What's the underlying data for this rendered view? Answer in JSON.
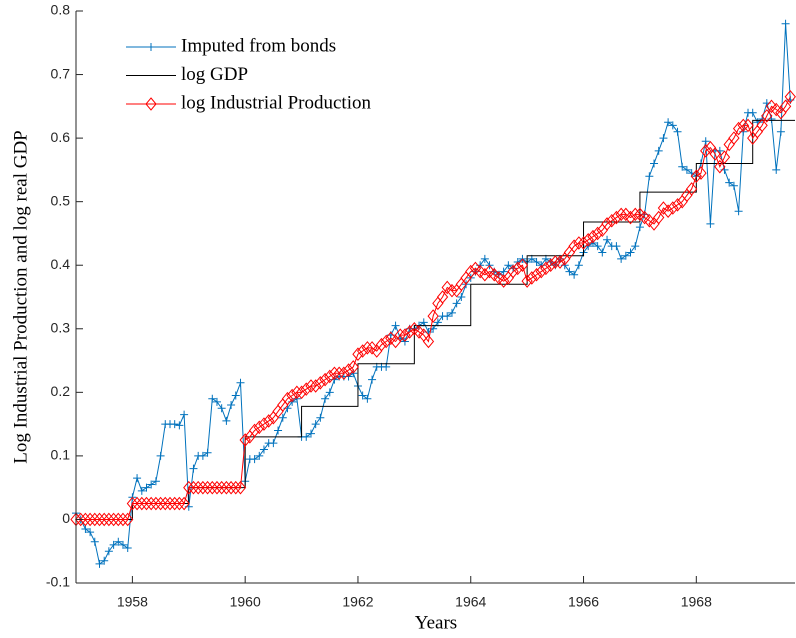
{
  "chart_data": {
    "type": "line",
    "x_label": "Years",
    "y_label": "Log Industrial Production and log real GDP",
    "xlim": [
      1957,
      1969.75
    ],
    "ylim": [
      -0.1,
      0.8
    ],
    "xticks": [
      1958,
      1960,
      1962,
      1964,
      1966,
      1968
    ],
    "yticks": [
      -0.1,
      0,
      0.1,
      0.2,
      0.3,
      0.4,
      0.5,
      0.6,
      0.7,
      0.8
    ],
    "grid": false,
    "legend": "upper left",
    "x": [
      1957,
      1957.083,
      1957.167,
      1957.25,
      1957.333,
      1957.417,
      1957.5,
      1957.583,
      1957.667,
      1957.75,
      1957.833,
      1957.917,
      1958,
      1958.083,
      1958.167,
      1958.25,
      1958.333,
      1958.417,
      1958.5,
      1958.583,
      1958.667,
      1958.75,
      1958.833,
      1958.917,
      1959,
      1959.083,
      1959.167,
      1959.25,
      1959.333,
      1959.417,
      1959.5,
      1959.583,
      1959.667,
      1959.75,
      1959.833,
      1959.917,
      1960,
      1960.083,
      1960.167,
      1960.25,
      1960.333,
      1960.417,
      1960.5,
      1960.583,
      1960.667,
      1960.75,
      1960.833,
      1960.917,
      1961,
      1961.083,
      1961.167,
      1961.25,
      1961.333,
      1961.417,
      1961.5,
      1961.583,
      1961.667,
      1961.75,
      1961.833,
      1961.917,
      1962,
      1962.083,
      1962.167,
      1962.25,
      1962.333,
      1962.417,
      1962.5,
      1962.583,
      1962.667,
      1962.75,
      1962.833,
      1962.917,
      1963,
      1963.083,
      1963.167,
      1963.25,
      1963.333,
      1963.417,
      1963.5,
      1963.583,
      1963.667,
      1963.75,
      1963.833,
      1963.917,
      1964,
      1964.083,
      1964.167,
      1964.25,
      1964.333,
      1964.417,
      1964.5,
      1964.583,
      1964.667,
      1964.75,
      1964.833,
      1964.917,
      1965,
      1965.083,
      1965.167,
      1965.25,
      1965.333,
      1965.417,
      1965.5,
      1965.583,
      1965.667,
      1965.75,
      1965.833,
      1965.917,
      1966,
      1966.083,
      1966.167,
      1966.25,
      1966.333,
      1966.417,
      1966.5,
      1966.583,
      1966.667,
      1966.75,
      1966.833,
      1966.917,
      1967,
      1967.083,
      1967.167,
      1967.25,
      1967.333,
      1967.417,
      1967.5,
      1967.583,
      1967.667,
      1967.75,
      1967.833,
      1967.917,
      1968,
      1968.083,
      1968.167,
      1968.25,
      1968.333,
      1968.417,
      1968.5,
      1968.583,
      1968.667,
      1968.75,
      1968.833,
      1968.917,
      1969,
      1969.083,
      1969.167,
      1969.25,
      1969.333,
      1969.417,
      1969.5,
      1969.583,
      1969.667
    ],
    "series": [
      {
        "name": "Imputed from bonds",
        "color": "#0072bd",
        "marker": "plus",
        "values": [
          0.01,
          0,
          -0.015,
          -0.02,
          -0.035,
          -0.07,
          -0.065,
          -0.05,
          -0.04,
          -0.035,
          -0.04,
          -0.045,
          0.035,
          0.065,
          0.045,
          0.05,
          0.055,
          0.06,
          0.1,
          0.15,
          0.15,
          0.15,
          0.148,
          0.165,
          0.02,
          0.08,
          0.1,
          0.1,
          0.105,
          0.19,
          0.185,
          0.175,
          0.155,
          0.18,
          0.195,
          0.215,
          0.06,
          0.095,
          0.095,
          0.1,
          0.11,
          0.12,
          0.12,
          0.14,
          0.16,
          0.175,
          0.185,
          0.19,
          0.13,
          0.13,
          0.135,
          0.15,
          0.16,
          0.19,
          0.2,
          0.22,
          0.225,
          0.225,
          0.225,
          0.23,
          0.21,
          0.195,
          0.19,
          0.22,
          0.24,
          0.24,
          0.24,
          0.29,
          0.305,
          0.285,
          0.28,
          0.3,
          0.3,
          0.305,
          0.31,
          0.295,
          0.3,
          0.31,
          0.32,
          0.32,
          0.325,
          0.34,
          0.35,
          0.37,
          0.38,
          0.39,
          0.4,
          0.41,
          0.4,
          0.39,
          0.385,
          0.39,
          0.4,
          0.395,
          0.405,
          0.41,
          0.405,
          0.41,
          0.405,
          0.4,
          0.41,
          0.405,
          0.4,
          0.41,
          0.4,
          0.39,
          0.385,
          0.4,
          0.42,
          0.43,
          0.435,
          0.43,
          0.42,
          0.44,
          0.43,
          0.43,
          0.41,
          0.415,
          0.42,
          0.43,
          0.46,
          0.48,
          0.54,
          0.56,
          0.58,
          0.6,
          0.625,
          0.62,
          0.61,
          0.555,
          0.55,
          0.545,
          0.54,
          0.56,
          0.595,
          0.465,
          0.58,
          0.58,
          0.55,
          0.53,
          0.525,
          0.485,
          0.61,
          0.64,
          0.64,
          0.625,
          0.63,
          0.655,
          0.63,
          0.55,
          0.61,
          0.78,
          0.66
        ]
      },
      {
        "name": "log GDP",
        "color": "#000000",
        "marker": "none",
        "step": true,
        "x": [
          1957,
          1958,
          1959,
          1960,
          1961,
          1962,
          1963,
          1964,
          1965,
          1966,
          1967,
          1968,
          1969
        ],
        "values": [
          0,
          0.025,
          0.05,
          0.13,
          0.178,
          0.245,
          0.305,
          0.37,
          0.415,
          0.468,
          0.515,
          0.56,
          0.628
        ]
      },
      {
        "name": "log Industrial Production",
        "color": "#ff0000",
        "marker": "diamond",
        "values": [
          0,
          0,
          0,
          0,
          0,
          0,
          0,
          0,
          0,
          0,
          0,
          0,
          0.025,
          0.025,
          0.025,
          0.025,
          0.025,
          0.025,
          0.025,
          0.025,
          0.025,
          0.025,
          0.025,
          0.025,
          0.05,
          0.05,
          0.05,
          0.05,
          0.05,
          0.05,
          0.05,
          0.05,
          0.05,
          0.05,
          0.05,
          0.05,
          0.125,
          0.13,
          0.14,
          0.145,
          0.15,
          0.155,
          0.16,
          0.17,
          0.18,
          0.19,
          0.195,
          0.2,
          0.2,
          0.205,
          0.21,
          0.21,
          0.215,
          0.22,
          0.225,
          0.23,
          0.23,
          0.23,
          0.235,
          0.24,
          0.26,
          0.265,
          0.27,
          0.27,
          0.265,
          0.275,
          0.28,
          0.285,
          0.28,
          0.29,
          0.29,
          0.295,
          0.3,
          0.295,
          0.29,
          0.28,
          0.32,
          0.34,
          0.35,
          0.365,
          0.36,
          0.36,
          0.37,
          0.38,
          0.39,
          0.395,
          0.39,
          0.385,
          0.39,
          0.385,
          0.38,
          0.375,
          0.38,
          0.39,
          0.395,
          0.4,
          0.375,
          0.38,
          0.385,
          0.39,
          0.395,
          0.4,
          0.405,
          0.405,
          0.41,
          0.42,
          0.43,
          0.435,
          0.435,
          0.44,
          0.445,
          0.45,
          0.455,
          0.465,
          0.47,
          0.475,
          0.48,
          0.48,
          0.475,
          0.48,
          0.48,
          0.475,
          0.47,
          0.465,
          0.475,
          0.49,
          0.485,
          0.49,
          0.495,
          0.5,
          0.51,
          0.52,
          0.54,
          0.545,
          0.58,
          0.585,
          0.575,
          0.555,
          0.57,
          0.59,
          0.6,
          0.615,
          0.62,
          0.62,
          0.6,
          0.61,
          0.62,
          0.635,
          0.65,
          0.645,
          0.64,
          0.65,
          0.665
        ]
      }
    ]
  }
}
